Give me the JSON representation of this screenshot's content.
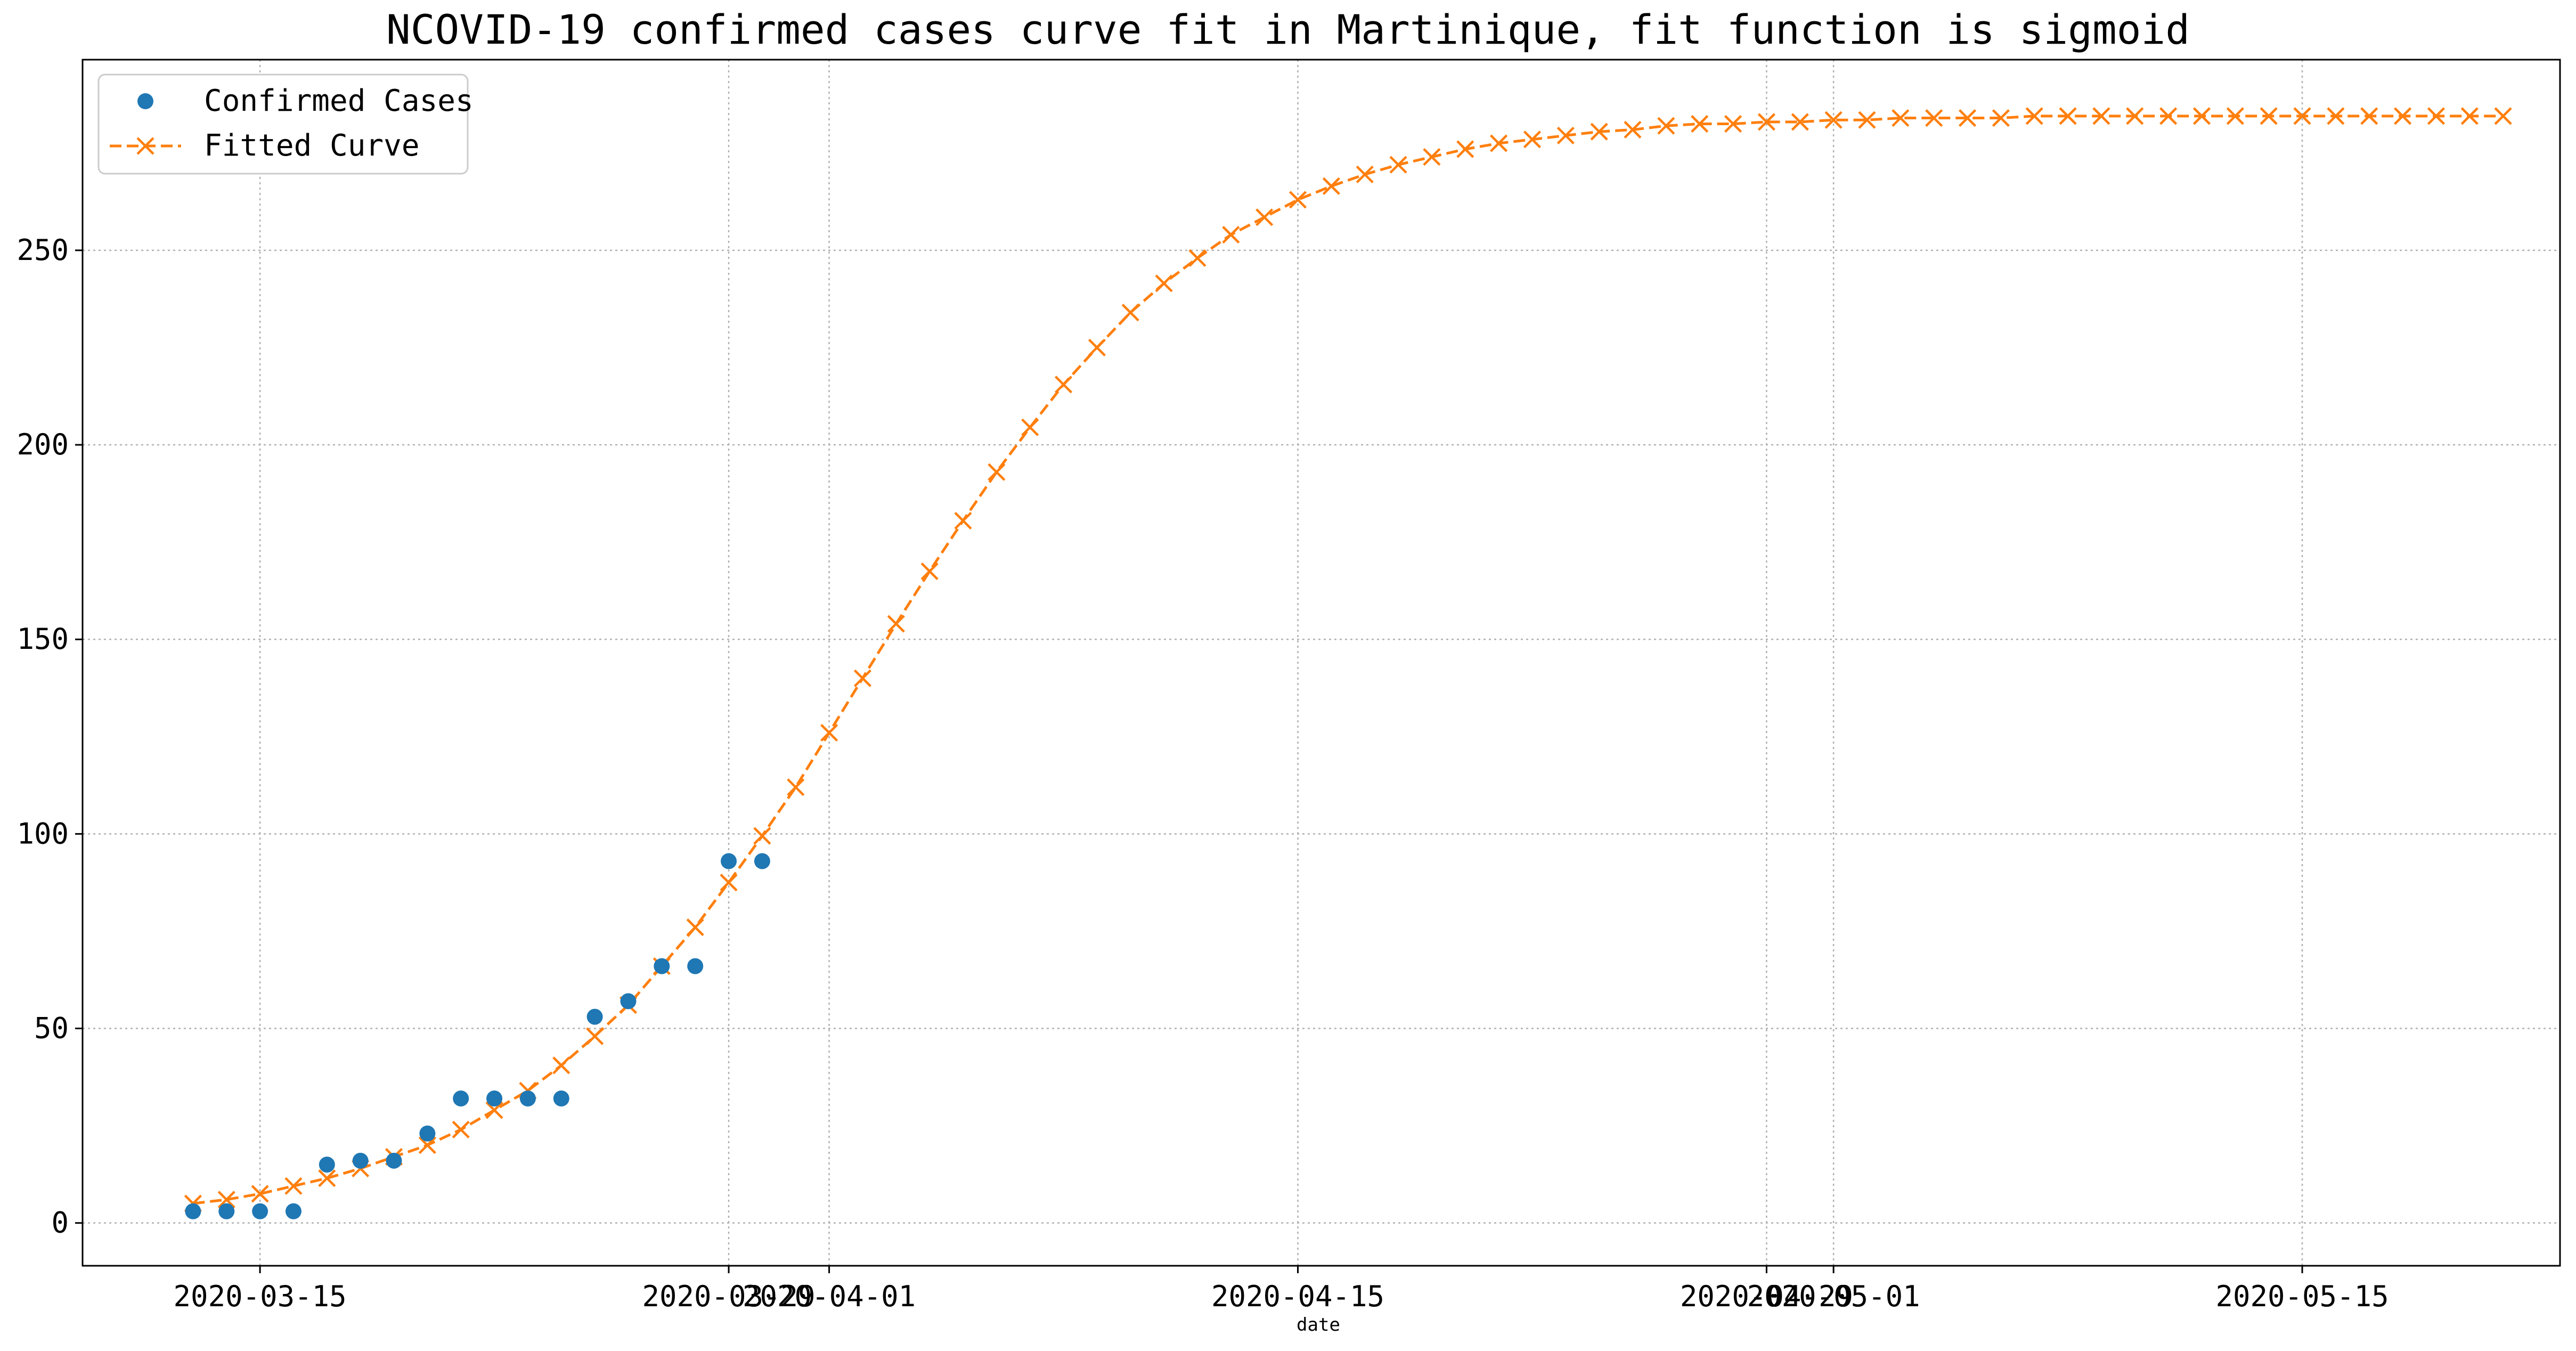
{
  "chart_data": {
    "type": "line",
    "title": "NCOVID-19 confirmed cases curve fit in Martinique, fit function is sigmoid",
    "xlabel": "date",
    "ylabel": "",
    "x_start_date": "2020-03-13",
    "xlim_days": [
      -3.3,
      70.7
    ],
    "ylim": [
      -11,
      299
    ],
    "grid": true,
    "legend_position": "top-left",
    "x_ticks": [
      {
        "day": 2,
        "label": "2020-03-15"
      },
      {
        "day": 16,
        "label": "2020-03-29"
      },
      {
        "day": 19,
        "label": "2020-04-01"
      },
      {
        "day": 33,
        "label": "2020-04-15"
      },
      {
        "day": 47,
        "label": "2020-04-29"
      },
      {
        "day": 49,
        "label": "2020-05-01"
      },
      {
        "day": 63,
        "label": "2020-05-15"
      }
    ],
    "y_ticks": [
      0,
      50,
      100,
      150,
      200,
      250
    ],
    "series": [
      {
        "name": "Confirmed Cases",
        "style": "dots",
        "color": "#1f77b4",
        "x": [
          0,
          1,
          2,
          3,
          4,
          5,
          6,
          7,
          8,
          9,
          10,
          11,
          12,
          13,
          14,
          15,
          16,
          17
        ],
        "y": [
          3,
          3,
          3,
          3,
          15,
          16,
          16,
          23,
          32,
          32,
          32,
          32,
          53,
          57,
          66,
          66,
          93,
          93
        ]
      },
      {
        "name": "Fitted Curve",
        "style": "dashed-x",
        "color": "#ff7f0e",
        "x": [
          0,
          1,
          2,
          3,
          4,
          5,
          6,
          7,
          8,
          9,
          10,
          11,
          12,
          13,
          14,
          15,
          16,
          17,
          18,
          19,
          20,
          21,
          22,
          23,
          24,
          25,
          26,
          27,
          28,
          29,
          30,
          31,
          32,
          33,
          34,
          35,
          36,
          37,
          38,
          39,
          40,
          41,
          42,
          43,
          44,
          45,
          46,
          47,
          48,
          49,
          50,
          51,
          52,
          53,
          54,
          55,
          56,
          57,
          58,
          59,
          60,
          61,
          62,
          63,
          64,
          65,
          66,
          67,
          68,
          69
        ],
        "y": [
          5,
          6,
          7.5,
          9.5,
          11.5,
          14,
          17,
          20,
          24,
          29,
          34,
          40.5,
          48,
          56,
          66,
          76,
          87.5,
          99.5,
          112,
          126,
          140,
          154,
          167.5,
          180.5,
          193,
          204.5,
          215.5,
          225,
          234,
          241.5,
          248,
          254,
          258.5,
          263,
          266.5,
          269.5,
          272,
          274,
          276,
          277.5,
          278.5,
          279.5,
          280.5,
          281,
          282,
          282.5,
          282.5,
          283,
          283,
          283.5,
          283.5,
          284,
          284,
          284,
          284,
          284.5,
          284.5,
          284.5,
          284.5,
          284.5,
          284.5,
          284.5,
          284.5,
          284.5,
          284.5,
          284.5,
          284.5,
          284.5,
          284.5,
          284.5
        ]
      }
    ]
  }
}
